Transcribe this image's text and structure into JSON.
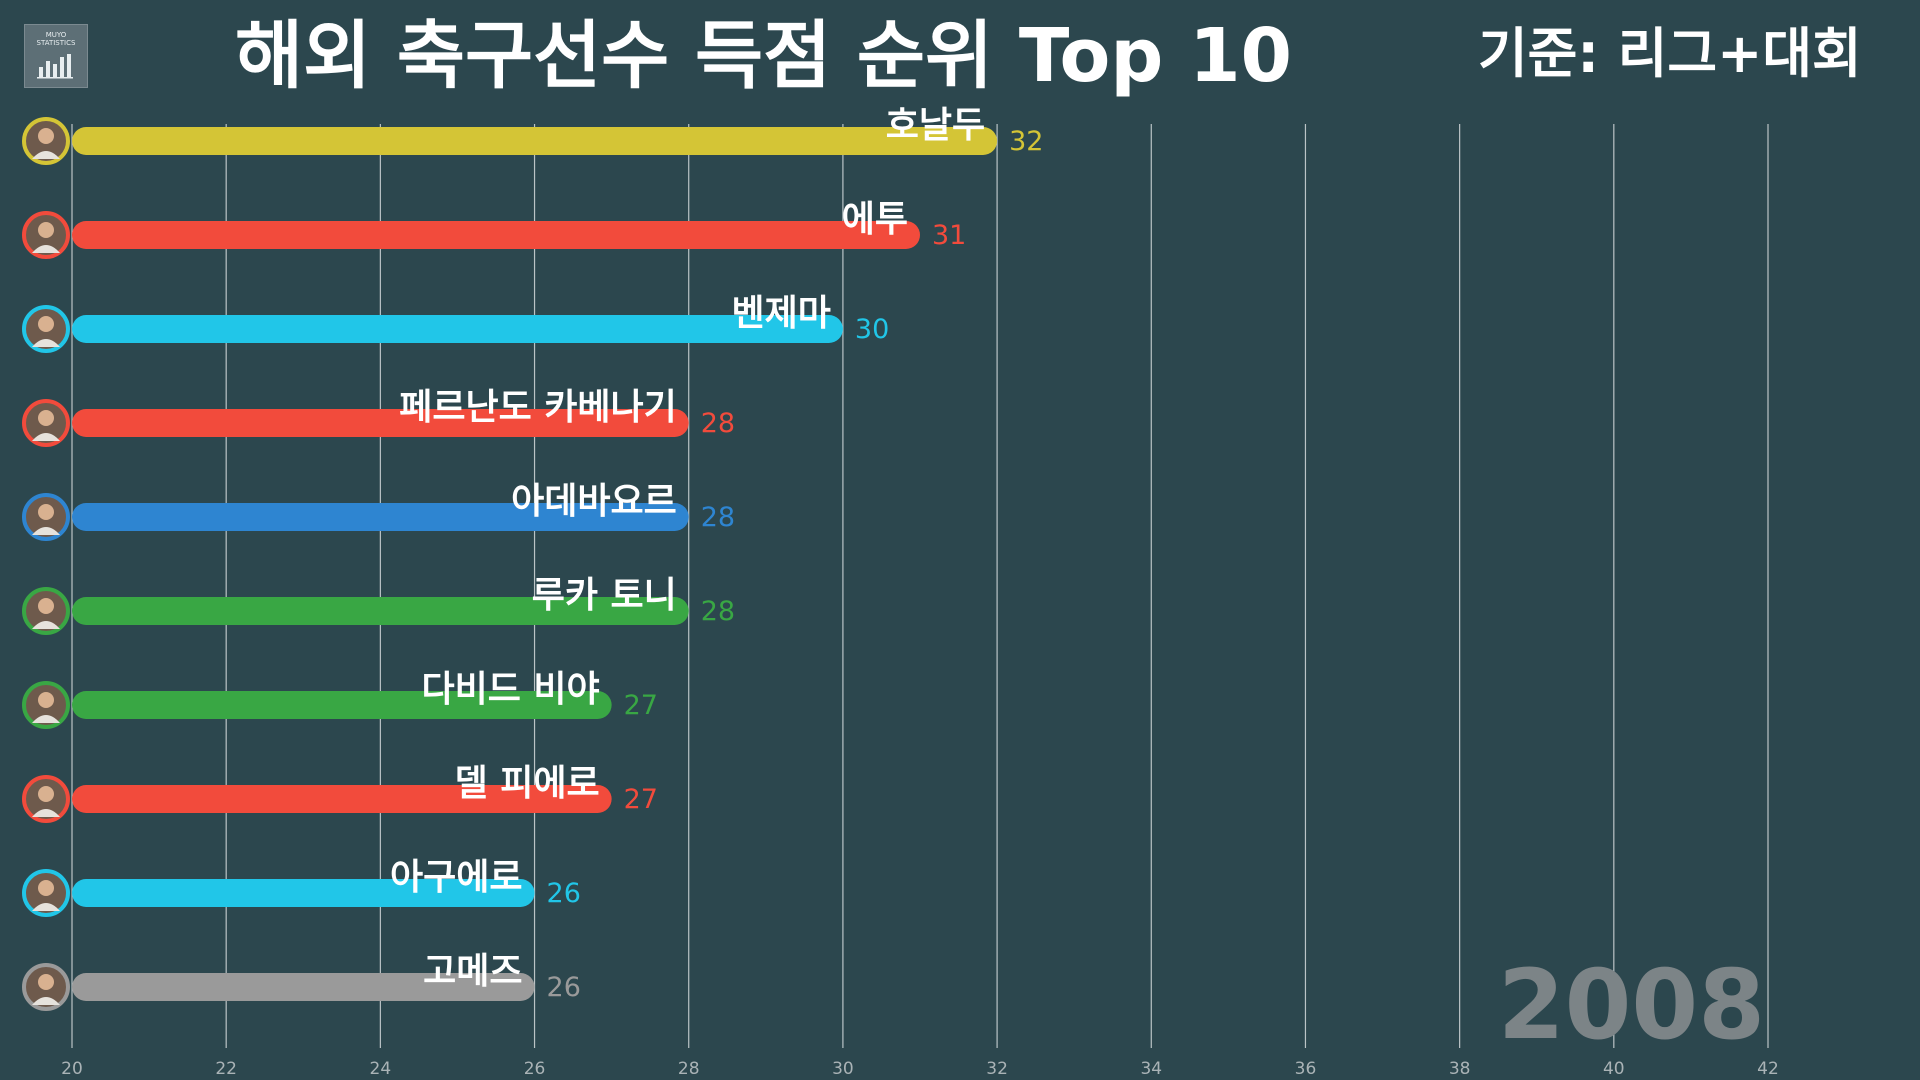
{
  "title": "해외 축구선수 득점 순위 Top 10",
  "criterion": "기준: 리그+대회",
  "logo_text": "MUYO\nSTATISTICS",
  "year": "2008",
  "chart_data": {
    "type": "bar",
    "orientation": "horizontal",
    "title": "해외 축구선수 득점 순위 Top 10",
    "xlim": [
      20,
      42
    ],
    "ticks": [
      20,
      22,
      24,
      26,
      28,
      30,
      32,
      34,
      36,
      38,
      40,
      42
    ],
    "grid": true,
    "categories": [
      "호날두",
      "에투",
      "벤제마",
      "페르난도 카베나기",
      "아데바요르",
      "루카 토니",
      "다비드 비야",
      "델 피에로",
      "아구에로",
      "고메즈"
    ],
    "values": [
      32,
      31,
      30,
      28,
      28,
      28,
      27,
      27,
      26,
      26
    ],
    "colors": [
      "#d4c536",
      "#f24b3c",
      "#21c6e8",
      "#f24b3c",
      "#2e85d1",
      "#39a744",
      "#39a744",
      "#f24b3c",
      "#21c6e8",
      "#9a9a9a"
    ]
  }
}
